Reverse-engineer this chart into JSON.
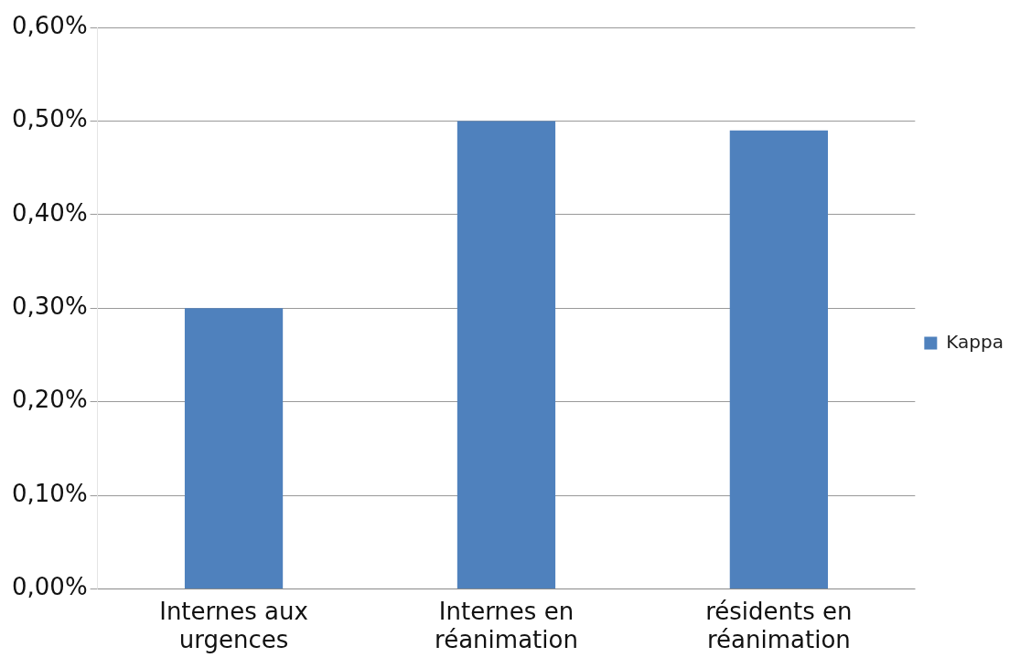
{
  "chart_data": {
    "type": "bar",
    "categories": [
      "Internes aux urgences",
      "Internes en réanimation",
      "résidents en réanimation"
    ],
    "series": [
      {
        "name": "Kappa",
        "color": "#4f81bd",
        "values": [
          0.3,
          0.5,
          0.49
        ]
      }
    ],
    "ylim": [
      0,
      0.6
    ],
    "yticks": [
      {
        "value": 0,
        "label": "0,00%"
      },
      {
        "value": 0.1,
        "label": "0,10%"
      },
      {
        "value": 0.2,
        "label": "0,20%"
      },
      {
        "value": 0.3,
        "label": "0,30%"
      },
      {
        "value": 0.4,
        "label": "0,40%"
      },
      {
        "value": 0.5,
        "label": "0,50%"
      },
      {
        "value": 0.6,
        "label": "0,60%"
      }
    ],
    "grid": "y",
    "legend": "right"
  }
}
